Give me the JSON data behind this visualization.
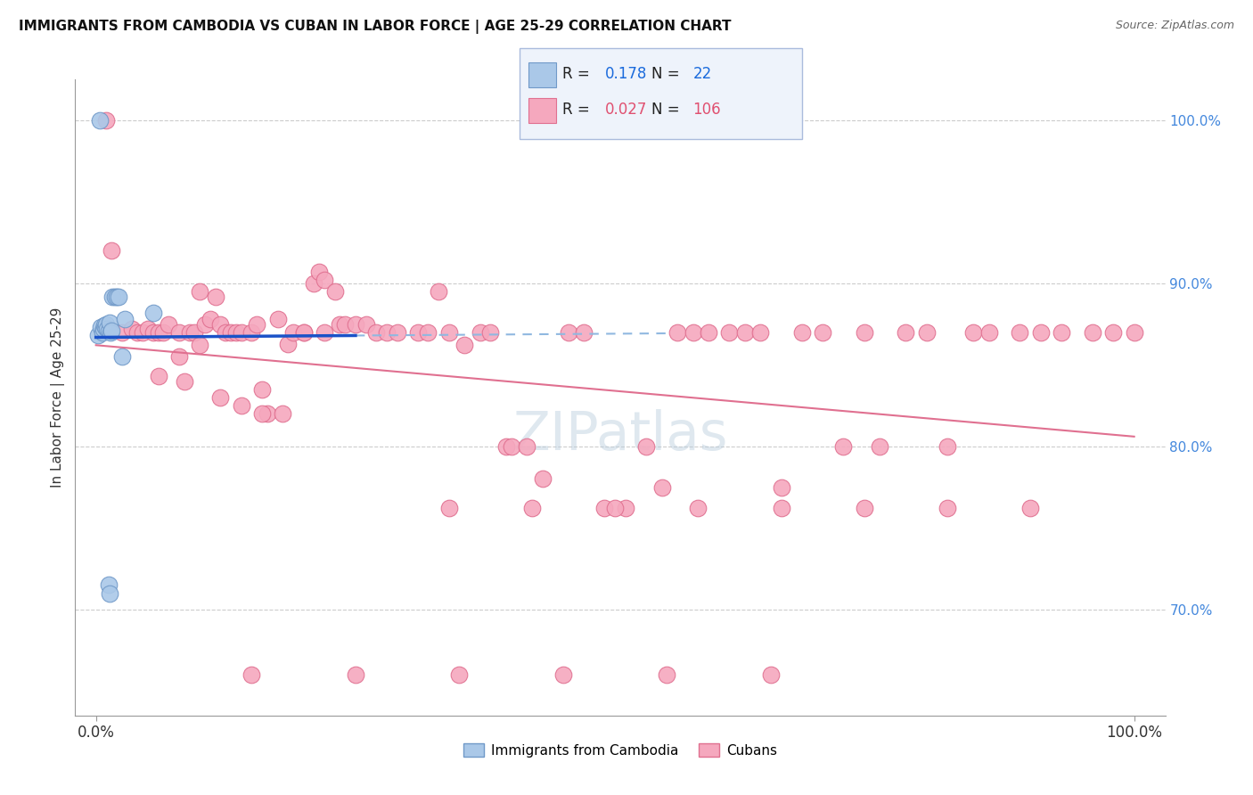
{
  "title": "IMMIGRANTS FROM CAMBODIA VS CUBAN IN LABOR FORCE | AGE 25-29 CORRELATION CHART",
  "source": "Source: ZipAtlas.com",
  "ylabel": "In Labor Force | Age 25-29",
  "xlim": [
    0.0,
    1.0
  ],
  "ylim": [
    0.635,
    1.025
  ],
  "R_cambodia": 0.178,
  "N_cambodia": 22,
  "R_cuban": 0.027,
  "N_cuban": 106,
  "cambodia_color": "#aac8e8",
  "cuban_color": "#f5a8be",
  "cambodia_edge": "#7099c8",
  "cuban_edge": "#e07090",
  "trendline_cambodia_solid": "#1a52c8",
  "trendline_cambodia_dash": "#90b8e0",
  "trendline_cuban": "#e07090",
  "legend_blue": "#1a6adc",
  "legend_pink": "#e05070",
  "grid_color": "#cccccc",
  "right_tick_color": "#4488dd",
  "camb_x": [
    0.002,
    0.004,
    0.005,
    0.006,
    0.007,
    0.008,
    0.009,
    0.01,
    0.011,
    0.012,
    0.013,
    0.014,
    0.015,
    0.016,
    0.018,
    0.02,
    0.022,
    0.025,
    0.028,
    0.055,
    0.012,
    0.013
  ],
  "camb_y": [
    0.868,
    1.0,
    0.873,
    0.87,
    0.872,
    0.874,
    0.873,
    0.875,
    0.872,
    0.871,
    0.876,
    0.87,
    0.871,
    0.892,
    0.892,
    0.892,
    0.892,
    0.855,
    0.878,
    0.882,
    0.715,
    0.71
  ],
  "cuban_x": [
    0.01,
    0.015,
    0.025,
    0.035,
    0.04,
    0.045,
    0.05,
    0.055,
    0.06,
    0.065,
    0.07,
    0.08,
    0.085,
    0.09,
    0.095,
    0.1,
    0.105,
    0.11,
    0.115,
    0.12,
    0.125,
    0.13,
    0.135,
    0.14,
    0.15,
    0.155,
    0.16,
    0.165,
    0.175,
    0.185,
    0.19,
    0.2,
    0.21,
    0.215,
    0.22,
    0.23,
    0.235,
    0.24,
    0.25,
    0.26,
    0.27,
    0.28,
    0.29,
    0.31,
    0.32,
    0.33,
    0.34,
    0.355,
    0.37,
    0.38,
    0.395,
    0.4,
    0.415,
    0.43,
    0.455,
    0.47,
    0.49,
    0.51,
    0.53,
    0.545,
    0.56,
    0.575,
    0.59,
    0.61,
    0.625,
    0.64,
    0.66,
    0.68,
    0.7,
    0.72,
    0.74,
    0.755,
    0.78,
    0.8,
    0.82,
    0.845,
    0.86,
    0.89,
    0.91,
    0.93,
    0.96,
    0.98,
    1.0,
    0.06,
    0.08,
    0.1,
    0.12,
    0.14,
    0.16,
    0.18,
    0.2,
    0.22,
    0.34,
    0.42,
    0.5,
    0.58,
    0.66,
    0.74,
    0.82,
    0.9,
    0.15,
    0.25,
    0.35,
    0.45,
    0.55,
    0.65
  ],
  "cuban_y": [
    1.0,
    0.92,
    0.87,
    0.872,
    0.87,
    0.87,
    0.872,
    0.87,
    0.87,
    0.87,
    0.875,
    0.87,
    0.84,
    0.87,
    0.87,
    0.895,
    0.875,
    0.878,
    0.892,
    0.875,
    0.87,
    0.87,
    0.87,
    0.87,
    0.87,
    0.875,
    0.835,
    0.82,
    0.878,
    0.863,
    0.87,
    0.87,
    0.9,
    0.907,
    0.902,
    0.895,
    0.875,
    0.875,
    0.875,
    0.875,
    0.87,
    0.87,
    0.87,
    0.87,
    0.87,
    0.895,
    0.87,
    0.862,
    0.87,
    0.87,
    0.8,
    0.8,
    0.8,
    0.78,
    0.87,
    0.87,
    0.762,
    0.762,
    0.8,
    0.775,
    0.87,
    0.87,
    0.87,
    0.87,
    0.87,
    0.87,
    0.775,
    0.87,
    0.87,
    0.8,
    0.87,
    0.8,
    0.87,
    0.87,
    0.8,
    0.87,
    0.87,
    0.87,
    0.87,
    0.87,
    0.87,
    0.87,
    0.87,
    0.843,
    0.855,
    0.862,
    0.83,
    0.825,
    0.82,
    0.82,
    0.87,
    0.87,
    0.762,
    0.762,
    0.762,
    0.762,
    0.762,
    0.762,
    0.762,
    0.762,
    0.66,
    0.66,
    0.66,
    0.66,
    0.66,
    0.66
  ]
}
